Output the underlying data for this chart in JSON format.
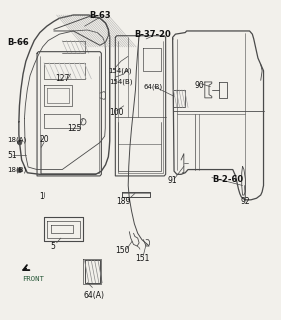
{
  "bg_color": "#f2f0eb",
  "lc": "#4a4a4a",
  "bold_labels": [
    "B-63",
    "B-66",
    "B-37-20",
    "B-2-60"
  ],
  "labels": {
    "B-63": [
      0.355,
      0.955,
      6,
      "bold",
      "center"
    ],
    "B-66": [
      0.025,
      0.87,
      6,
      "bold",
      "left"
    ],
    "B-37-20": [
      0.545,
      0.895,
      6,
      "bold",
      "center"
    ],
    "B-2-60": [
      0.755,
      0.44,
      6,
      "bold",
      "left"
    ],
    "127": [
      0.22,
      0.755,
      5.5,
      "normal",
      "center"
    ],
    "154(A)": [
      0.385,
      0.78,
      5,
      "normal",
      "left"
    ],
    "154(B)": [
      0.388,
      0.745,
      5,
      "normal",
      "left"
    ],
    "64(B)": [
      0.545,
      0.73,
      5,
      "normal",
      "center"
    ],
    "90": [
      0.71,
      0.735,
      5.5,
      "normal",
      "center"
    ],
    "100": [
      0.415,
      0.65,
      5.5,
      "normal",
      "center"
    ],
    "125": [
      0.265,
      0.6,
      5.5,
      "normal",
      "center"
    ],
    "18(A)": [
      0.025,
      0.565,
      5,
      "normal",
      "left"
    ],
    "20": [
      0.155,
      0.565,
      5.5,
      "normal",
      "center"
    ],
    "51": [
      0.025,
      0.515,
      5.5,
      "normal",
      "left"
    ],
    "18(B)": [
      0.025,
      0.47,
      5,
      "normal",
      "left"
    ],
    "1": [
      0.145,
      0.385,
      5.5,
      "normal",
      "center"
    ],
    "5": [
      0.185,
      0.23,
      5.5,
      "normal",
      "center"
    ],
    "64(A)": [
      0.335,
      0.075,
      5.5,
      "normal",
      "center"
    ],
    "189": [
      0.44,
      0.37,
      5.5,
      "normal",
      "center"
    ],
    "150": [
      0.435,
      0.215,
      5.5,
      "normal",
      "center"
    ],
    "151": [
      0.505,
      0.19,
      5.5,
      "normal",
      "center"
    ],
    "91": [
      0.615,
      0.435,
      5.5,
      "normal",
      "center"
    ],
    "92": [
      0.875,
      0.37,
      5.5,
      "normal",
      "center"
    ]
  }
}
